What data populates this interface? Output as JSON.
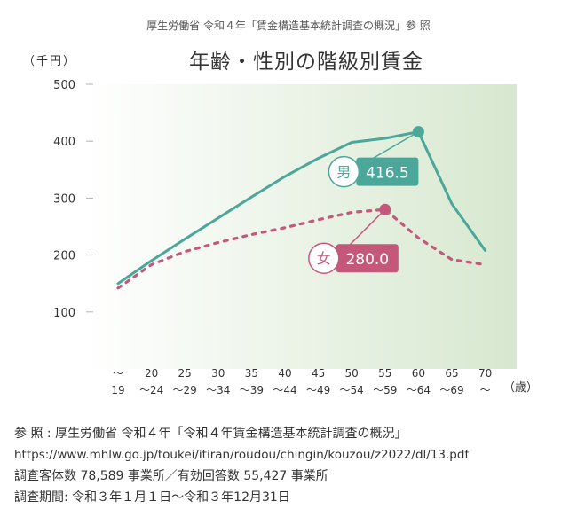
{
  "header": {
    "source_line": "厚生労働省 令和４年「賃金構造基本統計調査の概況」参 照"
  },
  "chart_data": {
    "type": "line",
    "title": "年齢・性別の階級別賃金",
    "ylabel": "（千円）",
    "xlabel": "（歳）",
    "ylim": [
      0,
      500
    ],
    "yticks": [
      100,
      200,
      300,
      400,
      500
    ],
    "categories": [
      {
        "top": "～",
        "bottom": "19"
      },
      {
        "top": "20",
        "bottom": "～24"
      },
      {
        "top": "25",
        "bottom": "～29"
      },
      {
        "top": "30",
        "bottom": "～34"
      },
      {
        "top": "35",
        "bottom": "～39"
      },
      {
        "top": "40",
        "bottom": "～44"
      },
      {
        "top": "45",
        "bottom": "～49"
      },
      {
        "top": "50",
        "bottom": "～54"
      },
      {
        "top": "55",
        "bottom": "～59"
      },
      {
        "top": "60",
        "bottom": "～64"
      },
      {
        "top": "65",
        "bottom": "～69"
      },
      {
        "top": "70",
        "bottom": "～"
      }
    ],
    "grid": false,
    "series": [
      {
        "name": "男",
        "color": "#4aa79a",
        "style": "solid",
        "values": [
          150,
          190,
          228,
          265,
          302,
          338,
          370,
          398,
          405,
          416.5,
          290,
          208
        ],
        "peak_label": "416.5"
      },
      {
        "name": "女",
        "color": "#c4587a",
        "style": "dotted",
        "values": [
          142,
          183,
          206,
          222,
          236,
          248,
          262,
          275,
          280.0,
          230,
          192,
          183
        ],
        "peak_label": "280.0"
      }
    ],
    "background": {
      "color_left": "#ffffff",
      "color_right": "#d7e8cf"
    }
  },
  "notes": {
    "line1": "参 照 : 厚生労働省 令和４年「令和４年賃金構造基本統計調査の概況」",
    "line2": "https://www.mhlw.go.jp/toukei/itiran/roudou/chingin/kouzou/z2022/dl/13.pdf",
    "line3": "調査客体数 78,589 事業所／有効回答数 55,427 事業所",
    "line4": "調査期間: 令和３年１月１日～令和３年12月31日"
  }
}
